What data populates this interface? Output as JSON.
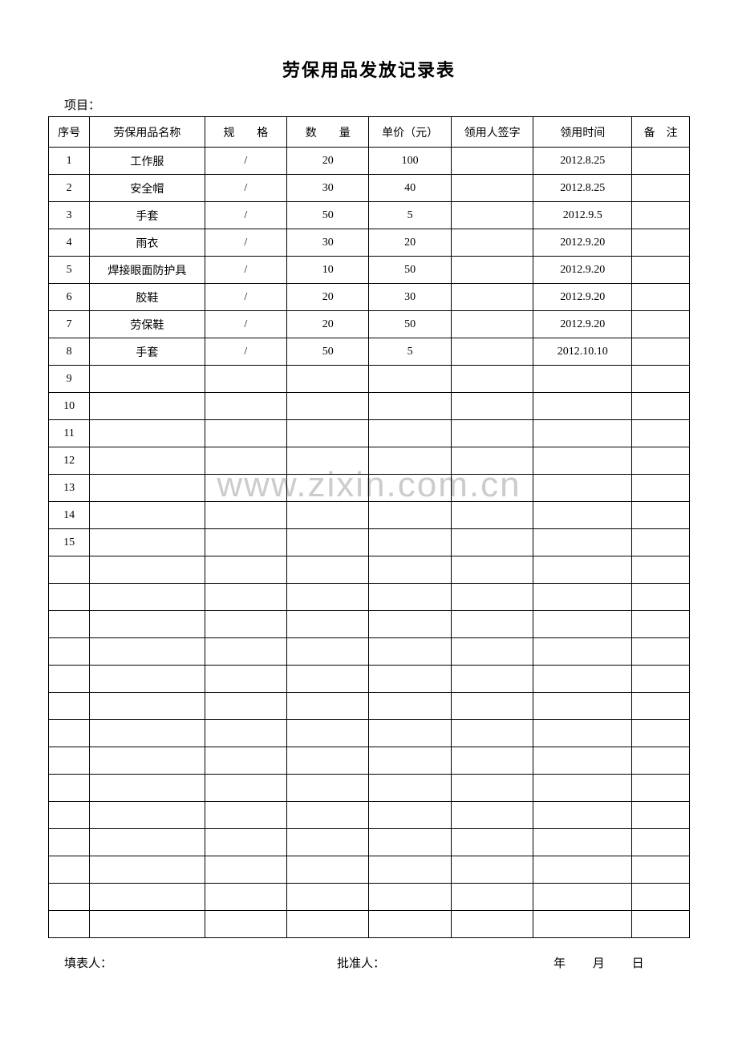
{
  "title": "劳保用品发放记录表",
  "project_label": "项目：",
  "headers": {
    "seq": "序号",
    "name": "劳保用品名称",
    "spec": "规　　格",
    "qty": "数　　量",
    "price": "单价（元）",
    "sign": "领用人签字",
    "date": "领用时间",
    "remark": "备　注"
  },
  "rows": [
    {
      "seq": "1",
      "name": "工作服",
      "spec": "/",
      "qty": "20",
      "price": "100",
      "sign": "",
      "date": "2012.8.25",
      "remark": ""
    },
    {
      "seq": "2",
      "name": "安全帽",
      "spec": "/",
      "qty": "30",
      "price": "40",
      "sign": "",
      "date": "2012.8.25",
      "remark": ""
    },
    {
      "seq": "3",
      "name": "手套",
      "spec": "/",
      "qty": "50",
      "price": "5",
      "sign": "",
      "date": "2012.9.5",
      "remark": ""
    },
    {
      "seq": "4",
      "name": "雨衣",
      "spec": "/",
      "qty": "30",
      "price": "20",
      "sign": "",
      "date": "2012.9.20",
      "remark": ""
    },
    {
      "seq": "5",
      "name": "焊接眼面防护具",
      "spec": "/",
      "qty": "10",
      "price": "50",
      "sign": "",
      "date": "2012.9.20",
      "remark": ""
    },
    {
      "seq": "6",
      "name": "胶鞋",
      "spec": "/",
      "qty": "20",
      "price": "30",
      "sign": "",
      "date": "2012.9.20",
      "remark": ""
    },
    {
      "seq": "7",
      "name": "劳保鞋",
      "spec": "/",
      "qty": "20",
      "price": "50",
      "sign": "",
      "date": "2012.9.20",
      "remark": ""
    },
    {
      "seq": "8",
      "name": "手套",
      "spec": "/",
      "qty": "50",
      "price": "5",
      "sign": "",
      "date": "2012.10.10",
      "remark": ""
    },
    {
      "seq": "9",
      "name": "",
      "spec": "",
      "qty": "",
      "price": "",
      "sign": "",
      "date": "",
      "remark": ""
    },
    {
      "seq": "10",
      "name": "",
      "spec": "",
      "qty": "",
      "price": "",
      "sign": "",
      "date": "",
      "remark": ""
    },
    {
      "seq": "11",
      "name": "",
      "spec": "",
      "qty": "",
      "price": "",
      "sign": "",
      "date": "",
      "remark": ""
    },
    {
      "seq": "12",
      "name": "",
      "spec": "",
      "qty": "",
      "price": "",
      "sign": "",
      "date": "",
      "remark": ""
    },
    {
      "seq": "13",
      "name": "",
      "spec": "",
      "qty": "",
      "price": "",
      "sign": "",
      "date": "",
      "remark": ""
    },
    {
      "seq": "14",
      "name": "",
      "spec": "",
      "qty": "",
      "price": "",
      "sign": "",
      "date": "",
      "remark": ""
    },
    {
      "seq": "15",
      "name": "",
      "spec": "",
      "qty": "",
      "price": "",
      "sign": "",
      "date": "",
      "remark": ""
    },
    {
      "seq": "",
      "name": "",
      "spec": "",
      "qty": "",
      "price": "",
      "sign": "",
      "date": "",
      "remark": ""
    },
    {
      "seq": "",
      "name": "",
      "spec": "",
      "qty": "",
      "price": "",
      "sign": "",
      "date": "",
      "remark": ""
    },
    {
      "seq": "",
      "name": "",
      "spec": "",
      "qty": "",
      "price": "",
      "sign": "",
      "date": "",
      "remark": ""
    },
    {
      "seq": "",
      "name": "",
      "spec": "",
      "qty": "",
      "price": "",
      "sign": "",
      "date": "",
      "remark": ""
    },
    {
      "seq": "",
      "name": "",
      "spec": "",
      "qty": "",
      "price": "",
      "sign": "",
      "date": "",
      "remark": ""
    },
    {
      "seq": "",
      "name": "",
      "spec": "",
      "qty": "",
      "price": "",
      "sign": "",
      "date": "",
      "remark": ""
    },
    {
      "seq": "",
      "name": "",
      "spec": "",
      "qty": "",
      "price": "",
      "sign": "",
      "date": "",
      "remark": ""
    },
    {
      "seq": "",
      "name": "",
      "spec": "",
      "qty": "",
      "price": "",
      "sign": "",
      "date": "",
      "remark": ""
    },
    {
      "seq": "",
      "name": "",
      "spec": "",
      "qty": "",
      "price": "",
      "sign": "",
      "date": "",
      "remark": ""
    },
    {
      "seq": "",
      "name": "",
      "spec": "",
      "qty": "",
      "price": "",
      "sign": "",
      "date": "",
      "remark": ""
    },
    {
      "seq": "",
      "name": "",
      "spec": "",
      "qty": "",
      "price": "",
      "sign": "",
      "date": "",
      "remark": ""
    },
    {
      "seq": "",
      "name": "",
      "spec": "",
      "qty": "",
      "price": "",
      "sign": "",
      "date": "",
      "remark": ""
    },
    {
      "seq": "",
      "name": "",
      "spec": "",
      "qty": "",
      "price": "",
      "sign": "",
      "date": "",
      "remark": ""
    },
    {
      "seq": "",
      "name": "",
      "spec": "",
      "qty": "",
      "price": "",
      "sign": "",
      "date": "",
      "remark": ""
    }
  ],
  "footer": {
    "filler": "填表人：",
    "approver": "批准人：",
    "year": "年",
    "month": "月",
    "day": "日"
  },
  "watermark": "www.zixin.com.cn"
}
